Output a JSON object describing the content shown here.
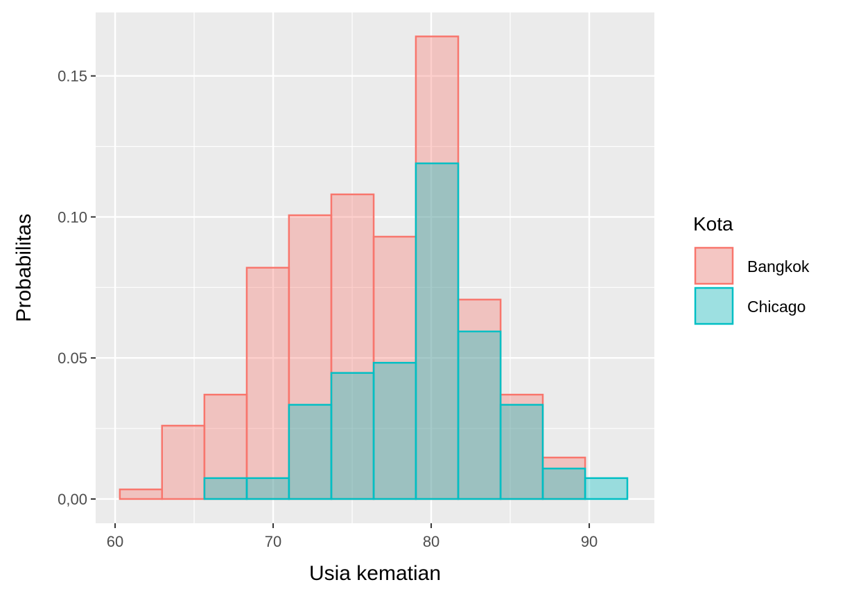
{
  "chart_data": {
    "type": "bar",
    "subtype": "overlapping histogram",
    "xlabel": "Usia kematian",
    "ylabel": "Probabilitas",
    "xlim": [
      58.77,
      94.12
    ],
    "ylim": [
      -0.0086,
      0.1725
    ],
    "x_ticks": [
      60,
      70,
      80,
      90
    ],
    "x_tick_labels": [
      "60",
      "70",
      "80",
      "90"
    ],
    "y_ticks": [
      0,
      0.05,
      0.1,
      0.15
    ],
    "y_tick_labels": [
      "0,00",
      "0.05",
      "0.10",
      "0.15"
    ],
    "grid": true,
    "legend": {
      "title": "Kota",
      "placement": "right"
    },
    "bin_edges": [
      60.3,
      62.97,
      65.65,
      68.33,
      71.0,
      73.68,
      76.36,
      79.03,
      81.71,
      84.39,
      87.06,
      89.74,
      92.41
    ],
    "series": [
      {
        "name": "Bangkok",
        "fill": "#F8766D",
        "values": [
          0.0034,
          0.026,
          0.037,
          0.082,
          0.1006,
          0.108,
          0.093,
          0.164,
          0.0707,
          0.037,
          0.0147,
          0
        ]
      },
      {
        "name": "Chicago",
        "fill": "#00BFC4",
        "values": [
          0,
          0,
          0.0074,
          0.0074,
          0.0334,
          0.0447,
          0.0483,
          0.119,
          0.0594,
          0.0334,
          0.0108,
          0.0074
        ]
      }
    ]
  }
}
